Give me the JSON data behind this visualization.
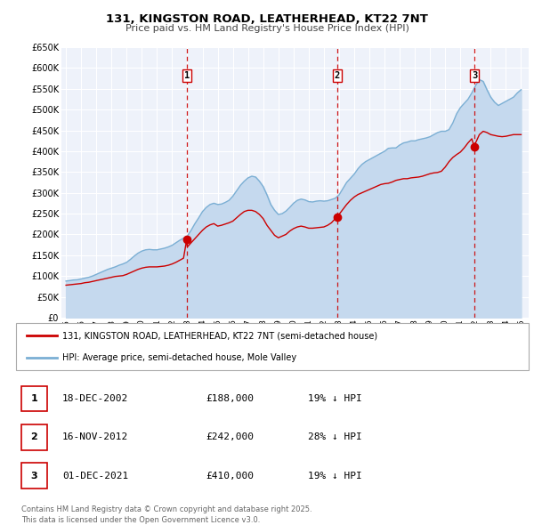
{
  "title": "131, KINGSTON ROAD, LEATHERHEAD, KT22 7NT",
  "subtitle": "Price paid vs. HM Land Registry's House Price Index (HPI)",
  "background_color": "#ffffff",
  "plot_bg_color": "#eef2fa",
  "grid_color": "#ffffff",
  "ylim": [
    0,
    650000
  ],
  "yticks": [
    0,
    50000,
    100000,
    150000,
    200000,
    250000,
    300000,
    350000,
    400000,
    450000,
    500000,
    550000,
    600000,
    650000
  ],
  "xlim_start": 1994.7,
  "xlim_end": 2025.5,
  "sale_dates": [
    2002.96,
    2012.88,
    2021.92
  ],
  "sale_prices": [
    188000,
    242000,
    410000
  ],
  "sale_labels": [
    "1",
    "2",
    "3"
  ],
  "sale_vline_color": "#cc0000",
  "sale_marker_color": "#cc0000",
  "hpi_line_color": "#7bafd4",
  "hpi_fill_color": "#c5d9ee",
  "price_line_color": "#cc0000",
  "legend_text_1": "131, KINGSTON ROAD, LEATHERHEAD, KT22 7NT (semi-detached house)",
  "legend_text_2": "HPI: Average price, semi-detached house, Mole Valley",
  "table_rows": [
    {
      "num": "1",
      "date": "18-DEC-2002",
      "price": "£188,000",
      "hpi": "19% ↓ HPI"
    },
    {
      "num": "2",
      "date": "16-NOV-2012",
      "price": "£242,000",
      "hpi": "28% ↓ HPI"
    },
    {
      "num": "3",
      "date": "01-DEC-2021",
      "price": "£410,000",
      "hpi": "19% ↓ HPI"
    }
  ],
  "footer_text": "Contains HM Land Registry data © Crown copyright and database right 2025.\nThis data is licensed under the Open Government Licence v3.0.",
  "hpi_data_x": [
    1995.0,
    1995.25,
    1995.5,
    1995.75,
    1996.0,
    1996.25,
    1996.5,
    1996.75,
    1997.0,
    1997.25,
    1997.5,
    1997.75,
    1998.0,
    1998.25,
    1998.5,
    1998.75,
    1999.0,
    1999.25,
    1999.5,
    1999.75,
    2000.0,
    2000.25,
    2000.5,
    2000.75,
    2001.0,
    2001.25,
    2001.5,
    2001.75,
    2002.0,
    2002.25,
    2002.5,
    2002.75,
    2003.0,
    2003.25,
    2003.5,
    2003.75,
    2004.0,
    2004.25,
    2004.5,
    2004.75,
    2005.0,
    2005.25,
    2005.5,
    2005.75,
    2006.0,
    2006.25,
    2006.5,
    2006.75,
    2007.0,
    2007.25,
    2007.5,
    2007.75,
    2008.0,
    2008.25,
    2008.5,
    2008.75,
    2009.0,
    2009.25,
    2009.5,
    2009.75,
    2010.0,
    2010.25,
    2010.5,
    2010.75,
    2011.0,
    2011.25,
    2011.5,
    2011.75,
    2012.0,
    2012.25,
    2012.5,
    2012.75,
    2013.0,
    2013.25,
    2013.5,
    2013.75,
    2014.0,
    2014.25,
    2014.5,
    2014.75,
    2015.0,
    2015.25,
    2015.5,
    2015.75,
    2016.0,
    2016.25,
    2016.5,
    2016.75,
    2017.0,
    2017.25,
    2017.5,
    2017.75,
    2018.0,
    2018.25,
    2018.5,
    2018.75,
    2019.0,
    2019.25,
    2019.5,
    2019.75,
    2020.0,
    2020.25,
    2020.5,
    2020.75,
    2021.0,
    2021.25,
    2021.5,
    2021.75,
    2022.0,
    2022.25,
    2022.5,
    2022.75,
    2023.0,
    2023.25,
    2023.5,
    2023.75,
    2024.0,
    2024.25,
    2024.5,
    2024.75,
    2025.0
  ],
  "hpi_data_y": [
    88000,
    89000,
    90500,
    91000,
    93000,
    95000,
    97000,
    100000,
    104000,
    108000,
    112000,
    116000,
    119000,
    122000,
    126000,
    129000,
    133000,
    140000,
    148000,
    155000,
    160000,
    163000,
    164000,
    163000,
    163000,
    165000,
    167000,
    170000,
    174000,
    180000,
    186000,
    191000,
    196000,
    210000,
    226000,
    240000,
    255000,
    265000,
    272000,
    275000,
    272000,
    273000,
    277000,
    282000,
    292000,
    305000,
    318000,
    328000,
    336000,
    340000,
    338000,
    328000,
    315000,
    295000,
    272000,
    258000,
    248000,
    250000,
    256000,
    265000,
    275000,
    282000,
    285000,
    283000,
    279000,
    278000,
    280000,
    281000,
    280000,
    281000,
    284000,
    287000,
    295000,
    310000,
    325000,
    335000,
    345000,
    358000,
    368000,
    375000,
    380000,
    385000,
    390000,
    395000,
    400000,
    407000,
    408000,
    408000,
    415000,
    420000,
    422000,
    425000,
    425000,
    428000,
    430000,
    432000,
    435000,
    440000,
    445000,
    448000,
    448000,
    452000,
    468000,
    490000,
    505000,
    515000,
    525000,
    540000,
    558000,
    572000,
    568000,
    548000,
    530000,
    518000,
    510000,
    515000,
    520000,
    525000,
    530000,
    540000,
    548000
  ],
  "price_data_x": [
    1995.0,
    1995.25,
    1995.5,
    1995.75,
    1996.0,
    1996.25,
    1996.5,
    1996.75,
    1997.0,
    1997.25,
    1997.5,
    1997.75,
    1998.0,
    1998.25,
    1998.5,
    1998.75,
    1999.0,
    1999.25,
    1999.5,
    1999.75,
    2000.0,
    2000.25,
    2000.5,
    2000.75,
    2001.0,
    2001.25,
    2001.5,
    2001.75,
    2002.0,
    2002.25,
    2002.5,
    2002.75,
    2002.96,
    2003.0,
    2003.25,
    2003.5,
    2003.75,
    2004.0,
    2004.25,
    2004.5,
    2004.75,
    2005.0,
    2005.25,
    2005.5,
    2005.75,
    2006.0,
    2006.25,
    2006.5,
    2006.75,
    2007.0,
    2007.25,
    2007.5,
    2007.75,
    2008.0,
    2008.25,
    2008.5,
    2008.75,
    2009.0,
    2009.25,
    2009.5,
    2009.75,
    2010.0,
    2010.25,
    2010.5,
    2010.75,
    2011.0,
    2011.25,
    2011.5,
    2011.75,
    2012.0,
    2012.25,
    2012.5,
    2012.75,
    2012.88,
    2013.0,
    2013.25,
    2013.5,
    2013.75,
    2014.0,
    2014.25,
    2014.5,
    2014.75,
    2015.0,
    2015.25,
    2015.5,
    2015.75,
    2016.0,
    2016.25,
    2016.5,
    2016.75,
    2017.0,
    2017.25,
    2017.5,
    2017.75,
    2018.0,
    2018.25,
    2018.5,
    2018.75,
    2019.0,
    2019.25,
    2019.5,
    2019.75,
    2020.0,
    2020.25,
    2020.5,
    2020.75,
    2021.0,
    2021.25,
    2021.5,
    2021.75,
    2021.92,
    2022.0,
    2022.25,
    2022.5,
    2022.75,
    2023.0,
    2023.25,
    2023.5,
    2023.75,
    2024.0,
    2024.25,
    2024.5,
    2024.75,
    2025.0
  ],
  "price_data_y": [
    78000,
    79000,
    80000,
    81000,
    82000,
    84000,
    85000,
    87000,
    89000,
    91000,
    93000,
    95000,
    97000,
    99000,
    100000,
    101000,
    104000,
    108000,
    112000,
    116000,
    119000,
    121000,
    122000,
    122000,
    122000,
    123000,
    124000,
    126000,
    129000,
    133000,
    138000,
    143000,
    188000,
    170000,
    180000,
    190000,
    200000,
    210000,
    218000,
    223000,
    226000,
    220000,
    222000,
    225000,
    228000,
    232000,
    240000,
    248000,
    255000,
    258000,
    258000,
    255000,
    248000,
    238000,
    222000,
    210000,
    198000,
    192000,
    196000,
    200000,
    208000,
    214000,
    218000,
    220000,
    218000,
    215000,
    215000,
    216000,
    217000,
    218000,
    222000,
    228000,
    238000,
    242000,
    248000,
    260000,
    272000,
    282000,
    290000,
    296000,
    300000,
    304000,
    308000,
    312000,
    316000,
    320000,
    322000,
    323000,
    326000,
    330000,
    332000,
    334000,
    334000,
    336000,
    337000,
    338000,
    340000,
    343000,
    346000,
    348000,
    349000,
    352000,
    362000,
    375000,
    385000,
    392000,
    398000,
    408000,
    420000,
    430000,
    410000,
    420000,
    440000,
    448000,
    445000,
    440000,
    438000,
    436000,
    435000,
    436000,
    438000,
    440000,
    440000,
    440000
  ]
}
